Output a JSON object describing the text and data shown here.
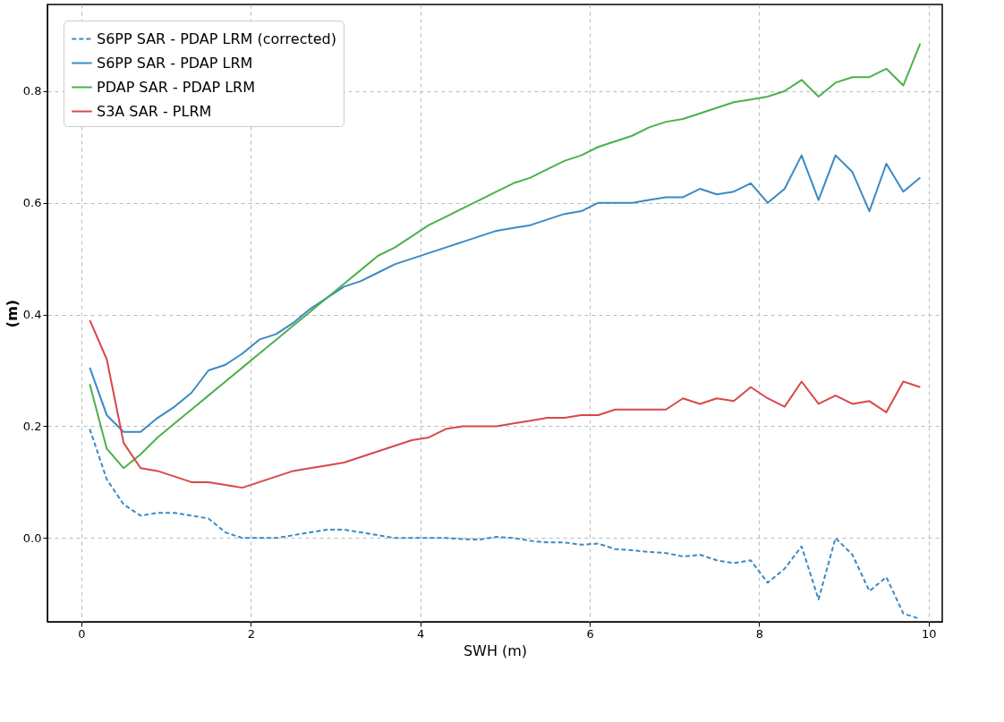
{
  "chart_data": {
    "type": "line",
    "xlabel": "SWH (m)",
    "ylabel": "(m)",
    "x": [
      0.1,
      0.3,
      0.5,
      0.7,
      0.9,
      1.1,
      1.3,
      1.5,
      1.7,
      1.9,
      2.1,
      2.3,
      2.5,
      2.7,
      2.9,
      3.1,
      3.3,
      3.5,
      3.7,
      3.9,
      4.1,
      4.3,
      4.5,
      4.7,
      4.9,
      5.1,
      5.3,
      5.5,
      5.7,
      5.9,
      6.1,
      6.3,
      6.5,
      6.7,
      6.9,
      7.1,
      7.3,
      7.5,
      7.7,
      7.9,
      8.1,
      8.3,
      8.5,
      8.7,
      8.9,
      9.1,
      9.3,
      9.5,
      9.7,
      9.9
    ],
    "series": [
      {
        "name": "S6PP SAR - PDAP LRM (corrected)",
        "color": "#3a8ac4",
        "line_style": "dashed",
        "values": [
          0.195,
          0.105,
          0.06,
          0.04,
          0.045,
          0.045,
          0.04,
          0.035,
          0.01,
          0.0,
          0.0,
          0.0,
          0.005,
          0.01,
          0.015,
          0.015,
          0.01,
          0.005,
          0.0,
          0.0,
          0.0,
          0.0,
          -0.002,
          -0.003,
          0.002,
          0.0,
          -0.005,
          -0.008,
          -0.008,
          -0.012,
          -0.01,
          -0.02,
          -0.022,
          -0.025,
          -0.027,
          -0.033,
          -0.03,
          -0.04,
          -0.045,
          -0.04,
          -0.08,
          -0.055,
          -0.015,
          -0.11,
          0.0,
          -0.03,
          -0.095,
          -0.07,
          -0.135,
          -0.145
        ]
      },
      {
        "name": "S6PP SAR - PDAP LRM",
        "color": "#3a8ac4",
        "line_style": "solid",
        "values": [
          0.305,
          0.22,
          0.19,
          0.19,
          0.215,
          0.235,
          0.26,
          0.3,
          0.31,
          0.33,
          0.355,
          0.365,
          0.385,
          0.41,
          0.43,
          0.45,
          0.46,
          0.475,
          0.49,
          0.5,
          0.51,
          0.52,
          0.53,
          0.54,
          0.55,
          0.555,
          0.56,
          0.57,
          0.58,
          0.585,
          0.6,
          0.6,
          0.6,
          0.605,
          0.61,
          0.61,
          0.625,
          0.615,
          0.62,
          0.635,
          0.6,
          0.625,
          0.685,
          0.605,
          0.685,
          0.655,
          0.585,
          0.67,
          0.62,
          0.645
        ]
      },
      {
        "name": "PDAP SAR - PDAP LRM",
        "color": "#4cb04c",
        "line_style": "solid",
        "values": [
          0.275,
          0.16,
          0.125,
          0.15,
          0.18,
          0.205,
          0.23,
          0.255,
          0.28,
          0.305,
          0.33,
          0.355,
          0.38,
          0.405,
          0.43,
          0.455,
          0.48,
          0.505,
          0.52,
          0.54,
          0.56,
          0.575,
          0.59,
          0.605,
          0.62,
          0.635,
          0.645,
          0.66,
          0.675,
          0.685,
          0.7,
          0.71,
          0.72,
          0.735,
          0.745,
          0.75,
          0.76,
          0.77,
          0.78,
          0.785,
          0.79,
          0.8,
          0.82,
          0.79,
          0.815,
          0.825,
          0.825,
          0.84,
          0.81,
          0.885
        ]
      },
      {
        "name": "S3A SAR - PLRM",
        "color": "#d9474a",
        "line_style": "solid",
        "values": [
          0.39,
          0.32,
          0.17,
          0.125,
          0.12,
          0.11,
          0.1,
          0.1,
          0.095,
          0.09,
          0.1,
          0.11,
          0.12,
          0.125,
          0.13,
          0.135,
          0.145,
          0.155,
          0.165,
          0.175,
          0.18,
          0.195,
          0.2,
          0.2,
          0.2,
          0.205,
          0.21,
          0.215,
          0.215,
          0.22,
          0.22,
          0.23,
          0.23,
          0.23,
          0.23,
          0.25,
          0.24,
          0.25,
          0.245,
          0.27,
          0.25,
          0.235,
          0.28,
          0.24,
          0.255,
          0.24,
          0.245,
          0.225,
          0.28,
          0.27
        ]
      }
    ],
    "xlim": [
      -0.4,
      10.16
    ],
    "ylim": [
      -0.15,
      0.955
    ],
    "xticks": [
      0,
      2,
      4,
      6,
      8,
      10
    ],
    "yticks": [
      {
        "value": 0,
        "label": "0.0"
      },
      {
        "value": 0.2,
        "label": "0.2"
      },
      {
        "value": 0.4,
        "label": "0.4"
      },
      {
        "value": 0.6,
        "label": "0.6"
      },
      {
        "value": 0.8,
        "label": "0.8"
      }
    ],
    "grid": true,
    "legend": "top left"
  }
}
